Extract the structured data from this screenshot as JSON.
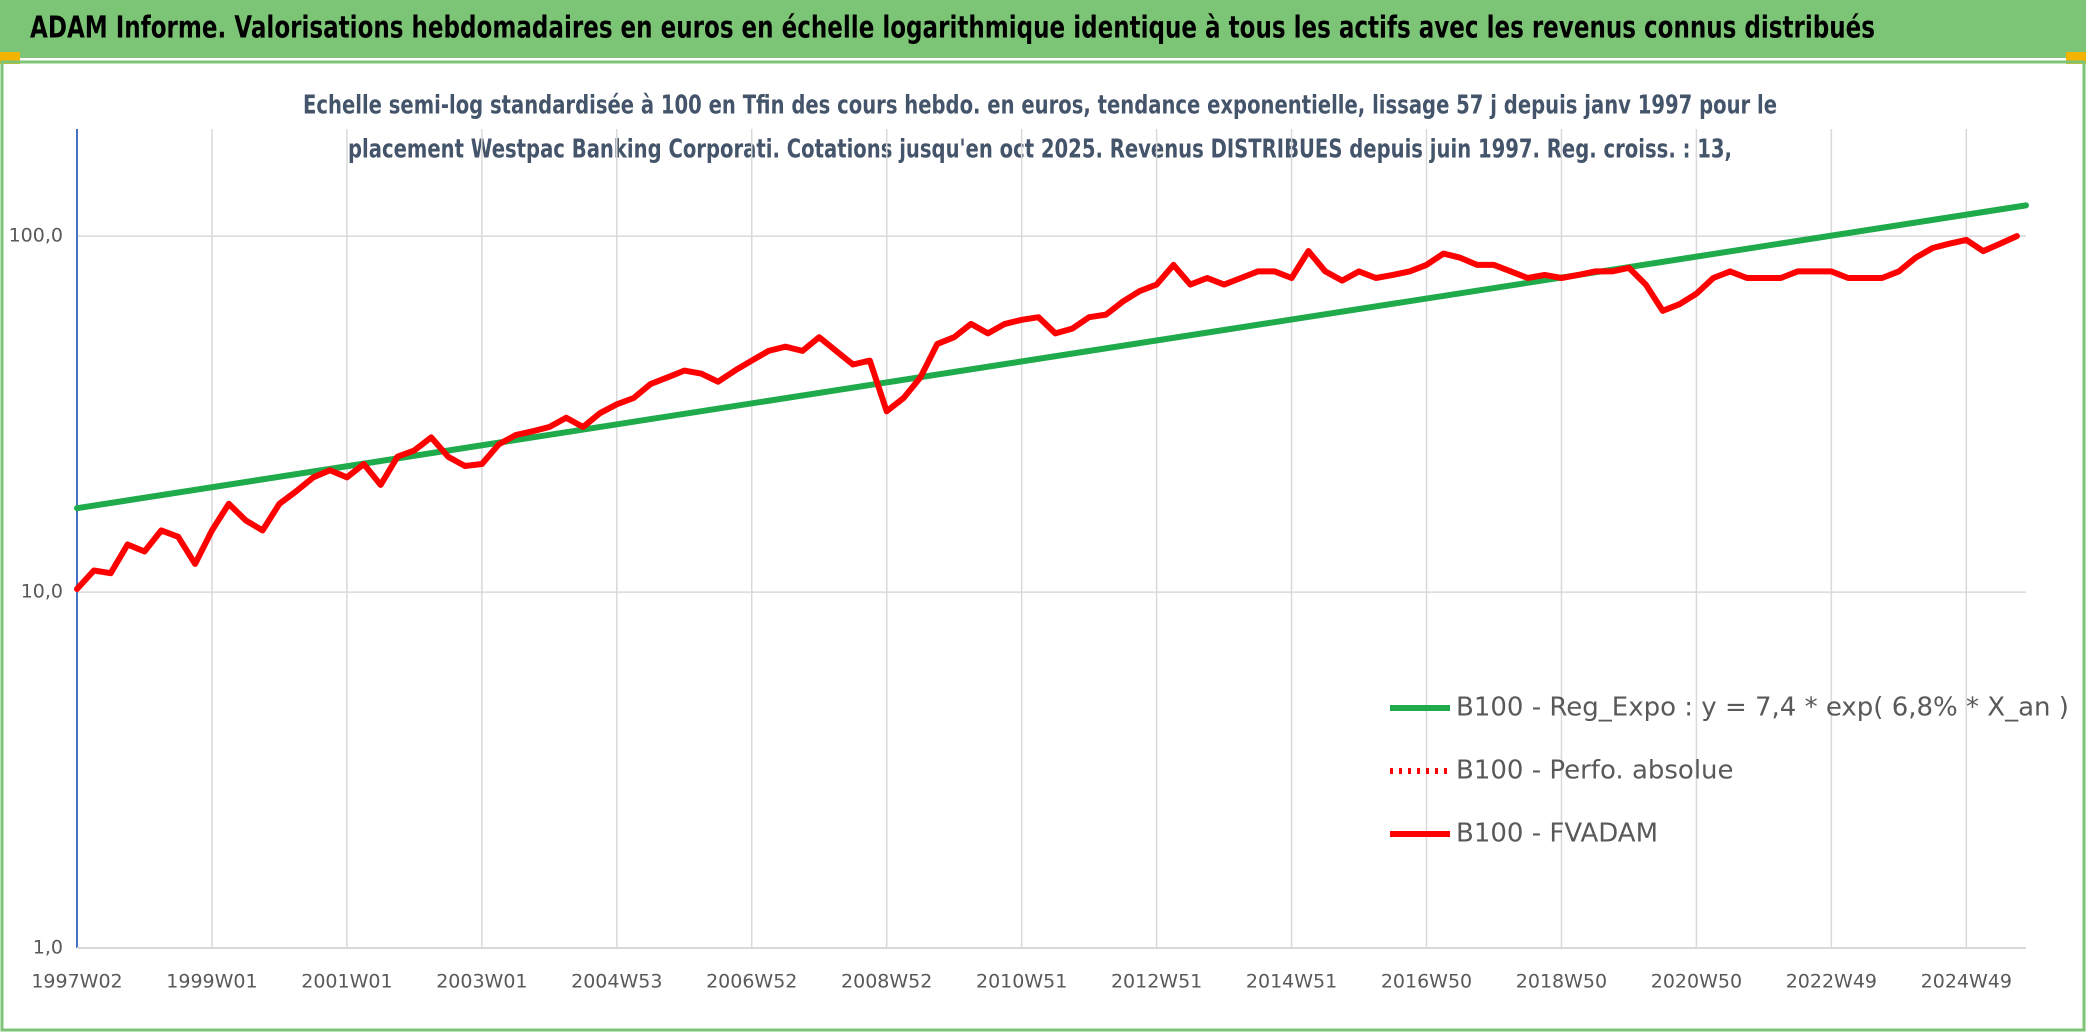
{
  "chart_data": {
    "type": "line",
    "title": "ADAM Informe. Valorisations hebdomadaires en euros en échelle logarithmique identique à tous les actifs avec les revenus connus distribués",
    "subtitle": [
      "Echelle semi-log standardisée à 100 en Tfin des cours hebdo. en euros, tendance exponentielle, lissage 57 j depuis janv 1997 pour le",
      "placement Westpac Banking Corporati. Cotations jusqu'en oct 2025. Revenus DISTRIBUES depuis juin 1997. Reg. croiss. : 13,"
    ],
    "log_scale": true,
    "grid": true,
    "legend": "right",
    "xlim": [
      0,
      1502
    ],
    "xticks": [
      {
        "value": 0,
        "label": "1997W02"
      },
      {
        "value": 104,
        "label": "1999W01"
      },
      {
        "value": 208,
        "label": "2001W01"
      },
      {
        "value": 312,
        "label": "2003W01"
      },
      {
        "value": 416,
        "label": "2004W53"
      },
      {
        "value": 520,
        "label": "2006W52"
      },
      {
        "value": 624,
        "label": "2008W52"
      },
      {
        "value": 728,
        "label": "2010W51"
      },
      {
        "value": 832,
        "label": "2012W51"
      },
      {
        "value": 936,
        "label": "2014W51"
      },
      {
        "value": 1040,
        "label": "2016W50"
      },
      {
        "value": 1144,
        "label": "2018W50"
      },
      {
        "value": 1248,
        "label": "2020W50"
      },
      {
        "value": 1352,
        "label": "2022W49"
      },
      {
        "value": 1456,
        "label": "2024W49"
      }
    ],
    "ylim": [
      1,
      200
    ],
    "yticks": [
      {
        "value": 1,
        "label": "1,0"
      },
      {
        "value": 10,
        "label": "10,0"
      },
      {
        "value": 100,
        "label": "100,0"
      }
    ],
    "series": [
      {
        "name": "B100 - Reg_Expo : y = 7,4 * exp( 6,8% *  X_an )",
        "color": "#1fab4b",
        "x": [
          0,
          1502
        ],
        "values": [
          17.2,
          122
        ]
      },
      {
        "name": "B100 - Perfo. absolue",
        "color": "#ff0000",
        "dash": "dotted"
      },
      {
        "name": "B100 - FVADAM",
        "color": "#ff0000",
        "x": [
          0,
          13,
          26,
          39,
          52,
          65,
          78,
          91,
          104,
          117,
          130,
          143,
          156,
          169,
          182,
          195,
          208,
          221,
          234,
          247,
          260,
          273,
          286,
          299,
          312,
          325,
          338,
          351,
          364,
          377,
          390,
          403,
          416,
          429,
          442,
          455,
          468,
          481,
          494,
          507,
          520,
          533,
          546,
          559,
          572,
          585,
          598,
          611,
          624,
          637,
          650,
          663,
          676,
          689,
          702,
          715,
          728,
          741,
          754,
          767,
          780,
          793,
          806,
          819,
          832,
          845,
          858,
          871,
          884,
          897,
          910,
          923,
          936,
          949,
          962,
          975,
          988,
          1001,
          1014,
          1027,
          1040,
          1053,
          1066,
          1079,
          1092,
          1105,
          1118,
          1131,
          1144,
          1157,
          1170,
          1183,
          1196,
          1209,
          1222,
          1235,
          1248,
          1261,
          1274,
          1287,
          1300,
          1313,
          1326,
          1339,
          1352,
          1365,
          1378,
          1391,
          1404,
          1417,
          1430,
          1443,
          1456,
          1469,
          1482,
          1495
        ],
        "values": [
          10.2,
          11.5,
          11.3,
          13.6,
          13.0,
          14.9,
          14.3,
          12.0,
          14.9,
          17.7,
          15.9,
          14.9,
          17.7,
          19.2,
          21.0,
          22.0,
          21.0,
          22.9,
          20.0,
          24.0,
          25.0,
          27.2,
          24.0,
          22.6,
          22.9,
          26.0,
          27.6,
          28.3,
          29.1,
          30.9,
          29.1,
          31.8,
          33.7,
          35.1,
          38.4,
          40.1,
          41.9,
          41.1,
          39.0,
          41.9,
          44.7,
          47.6,
          48.9,
          47.6,
          52.0,
          47.6,
          43.6,
          44.7,
          32.2,
          35.1,
          40.1,
          49.8,
          52.0,
          56.7,
          53.3,
          56.7,
          58.2,
          59.2,
          53.3,
          55.0,
          59.2,
          60.2,
          65.5,
          70.1,
          73.1,
          83.0,
          73.1,
          76.3,
          73.1,
          76.3,
          79.6,
          79.6,
          76.3,
          90.8,
          79.6,
          75.0,
          79.6,
          76.3,
          77.8,
          79.6,
          83.0,
          89.3,
          87.0,
          83.0,
          83.0,
          79.6,
          76.3,
          77.8,
          76.3,
          77.8,
          79.6,
          79.6,
          81.5,
          73.1,
          61.7,
          64.4,
          68.9,
          76.3,
          79.6,
          76.3,
          76.3,
          76.3,
          79.6,
          79.6,
          79.6,
          76.3,
          76.3,
          76.3,
          79.6,
          87.0,
          92.6,
          95.2,
          97.6,
          90.8,
          95.2,
          100.0
        ]
      }
    ]
  }
}
